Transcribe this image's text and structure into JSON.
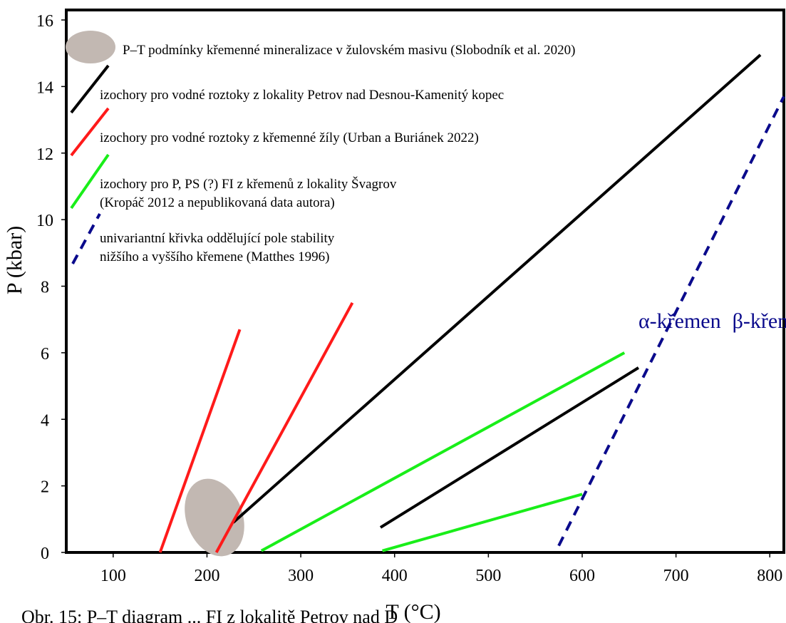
{
  "chart_data": {
    "type": "line",
    "xlabel": "T (°C)",
    "ylabel": "P (kbar)",
    "xlim": [
      50,
      815
    ],
    "ylim": [
      0,
      16.3
    ],
    "x_ticks": [
      100,
      200,
      300,
      400,
      500,
      600,
      700,
      800
    ],
    "y_ticks": [
      0,
      2,
      4,
      6,
      8,
      10,
      12,
      14,
      16
    ],
    "grid": false,
    "legend_position": "top-left",
    "colors": {
      "black": "#000000",
      "red": "#ff1a1a",
      "green": "#19ee19",
      "navy": "#0a0a8c",
      "ellipse": "#c2b8b2"
    },
    "legend": [
      {
        "key": "ellipse",
        "text": "P–T podmínky křemenné mineralizace v žulovském masivu (Slobodník et al. 2020)"
      },
      {
        "key": "black",
        "text": "izochory pro vodné roztoky z lokality Petrov nad Desnou-Kamenitý kopec"
      },
      {
        "key": "red",
        "text": "izochory pro vodné roztoky z křemenné žíly (Urban a Buriánek 2022)"
      },
      {
        "key": "green",
        "text": "izochory pro P, PS (?) FI z křemenů z lokality Švagrov",
        "text2": "(Kropáč 2012 a nepublikovaná data autora)"
      },
      {
        "key": "navy",
        "text": "univariantní křivka oddělující pole stability",
        "text2": "nižšího a vyššího křemene (Matthes 1996)"
      }
    ],
    "series": [
      {
        "color": "black",
        "dash": false,
        "points": [
          [
            228,
            0.9
          ],
          [
            790,
            14.95
          ]
        ]
      },
      {
        "color": "black",
        "dash": false,
        "points": [
          [
            385,
            0.75
          ],
          [
            660,
            5.55
          ]
        ]
      },
      {
        "color": "red",
        "dash": false,
        "points": [
          [
            150,
            0
          ],
          [
            235,
            6.7
          ]
        ]
      },
      {
        "color": "red",
        "dash": false,
        "points": [
          [
            210,
            0
          ],
          [
            355,
            7.5
          ]
        ]
      },
      {
        "color": "green",
        "dash": false,
        "points": [
          [
            258,
            0.05
          ],
          [
            645,
            6.0
          ]
        ]
      },
      {
        "color": "green",
        "dash": false,
        "points": [
          [
            387,
            0.05
          ],
          [
            600,
            1.75
          ]
        ]
      },
      {
        "color": "navy",
        "dash": true,
        "points": [
          [
            575,
            0.2
          ],
          [
            815,
            13.7
          ]
        ]
      }
    ],
    "region": {
      "cx": 208,
      "cy": 1.05,
      "rx": 30,
      "ry": 1.2,
      "tilt": -0.35
    },
    "annotations": [
      {
        "text": "α-křemen",
        "x": 660,
        "y": 6.75,
        "color": "navy"
      },
      {
        "text": "β-křemen",
        "x": 760,
        "y": 6.75,
        "color": "navy"
      }
    ]
  },
  "caption": "Obr. 15: P–T diagram ... FI z lokalitě Petrov nad D"
}
